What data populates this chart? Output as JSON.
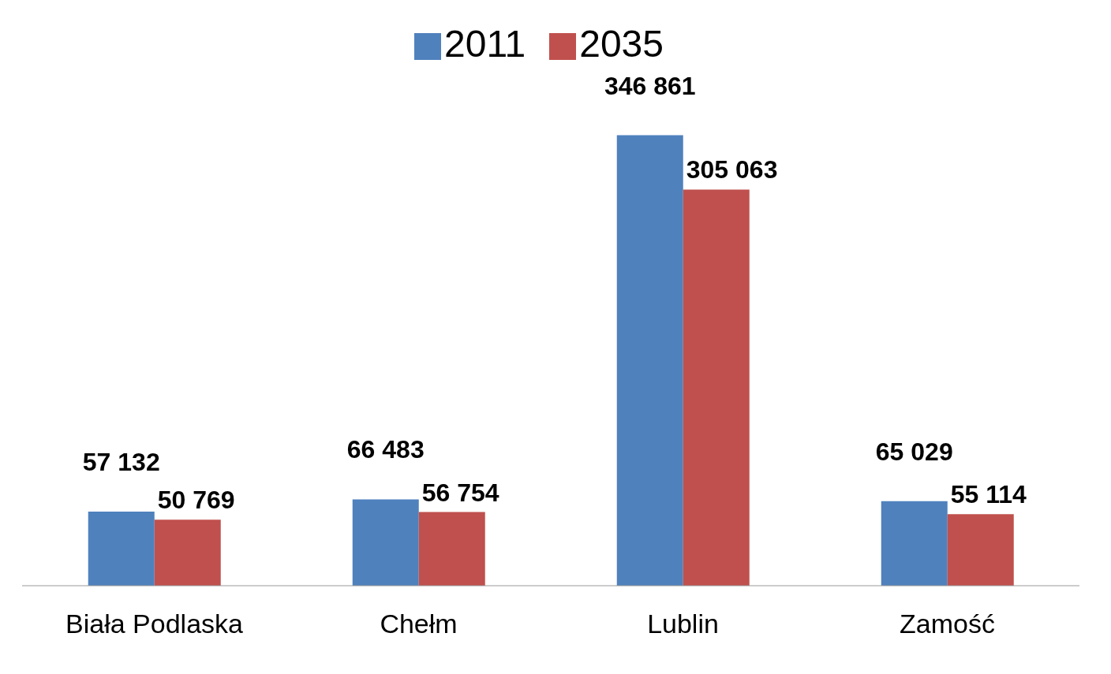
{
  "chart_data": {
    "type": "bar",
    "categories": [
      "Biała Podlaska",
      "Chełm",
      "Lublin",
      "Zamość"
    ],
    "series": [
      {
        "name": "2011",
        "color": "#4f81bd",
        "values": [
          57132,
          66483,
          346861,
          65029
        ],
        "value_labels": [
          "57 132",
          "66 483",
          "346 861",
          "65 029"
        ]
      },
      {
        "name": "2035",
        "color": "#c0504d",
        "values": [
          50769,
          56754,
          305063,
          55114
        ],
        "value_labels": [
          "50 769",
          "56 754",
          "305 063",
          "55 114"
        ]
      }
    ],
    "legend": "top",
    "grid": false
  }
}
